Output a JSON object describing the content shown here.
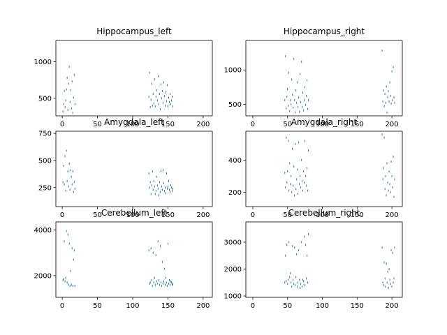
{
  "chart_data": [
    {
      "type": "scatter",
      "title": "Hippocampus_left",
      "xlim": [
        -9,
        213
      ],
      "ylim": [
        260,
        1290
      ],
      "xticks": [
        0,
        50,
        100,
        150,
        200
      ],
      "yticks": [
        500,
        1000
      ],
      "series": [
        {
          "color": "#1f77b4",
          "x": [
            1,
            2,
            3,
            4,
            5,
            6,
            7,
            8,
            9,
            10,
            11,
            12,
            13,
            14,
            15,
            16,
            17,
            18,
            123,
            124,
            125,
            126,
            127,
            128,
            129,
            130,
            131,
            132,
            133,
            134,
            135,
            136,
            137,
            138,
            139,
            140,
            141,
            142,
            143,
            144,
            145,
            146,
            147,
            148,
            149,
            150,
            151,
            152,
            153,
            154,
            155,
            156,
            157
          ],
          "y": [
            320,
            420,
            600,
            380,
            470,
            620,
            780,
            340,
            700,
            930,
            450,
            610,
            360,
            730,
            300,
            510,
            820,
            420,
            520,
            850,
            380,
            480,
            700,
            400,
            560,
            430,
            760,
            390,
            520,
            610,
            470,
            800,
            420,
            560,
            350,
            690,
            500,
            600,
            440,
            720,
            530,
            400,
            580,
            460,
            680,
            390,
            510,
            450,
            560,
            420,
            470,
            520,
            390
          ]
        }
      ]
    },
    {
      "type": "scatter",
      "title": "Hippocampus_right",
      "xlim": [
        -10,
        215
      ],
      "ylim": [
        330,
        1430
      ],
      "xticks": [
        0,
        50,
        100,
        150,
        200
      ],
      "yticks": [
        500,
        1000
      ],
      "series": [
        {
          "color": "#1f77b4",
          "x": [
            46,
            47,
            48,
            49,
            50,
            51,
            52,
            53,
            54,
            55,
            56,
            57,
            58,
            59,
            60,
            61,
            62,
            63,
            64,
            65,
            66,
            67,
            68,
            69,
            70,
            71,
            72,
            73,
            74,
            75,
            76,
            77,
            78,
            79,
            80,
            186,
            187,
            188,
            189,
            190,
            191,
            192,
            193,
            194,
            195,
            196,
            197,
            198,
            199,
            200,
            201,
            202,
            203,
            204
          ],
          "y": [
            560,
            1200,
            440,
            610,
            720,
            480,
            960,
            400,
            560,
            500,
            860,
            640,
            450,
            1160,
            560,
            380,
            700,
            520,
            820,
            460,
            600,
            390,
            940,
            530,
            1120,
            460,
            670,
            410,
            560,
            750,
            490,
            620,
            850,
            430,
            560,
            1280,
            540,
            700,
            470,
            650,
            520,
            760,
            380,
            600,
            690,
            540,
            820,
            620,
            510,
            980,
            560,
            1040,
            600,
            520
          ]
        }
      ]
    },
    {
      "type": "scatter",
      "title": "Amygdala_left",
      "xlim": [
        -9,
        213
      ],
      "ylim": [
        75,
        770
      ],
      "xticks": [
        0,
        50,
        100,
        150,
        200
      ],
      "yticks": [
        250,
        500,
        750
      ],
      "series": [
        {
          "color": "#1f77b4",
          "x": [
            1,
            2,
            3,
            4,
            5,
            6,
            7,
            8,
            9,
            10,
            11,
            12,
            13,
            14,
            15,
            16,
            17,
            18,
            123,
            124,
            125,
            126,
            127,
            128,
            129,
            130,
            131,
            132,
            133,
            134,
            135,
            136,
            137,
            138,
            139,
            140,
            141,
            142,
            143,
            144,
            145,
            146,
            147,
            148,
            149,
            150,
            151,
            152,
            153,
            154,
            155,
            156,
            157
          ],
          "y": [
            300,
            450,
            280,
            540,
            220,
            590,
            310,
            400,
            260,
            470,
            230,
            410,
            350,
            280,
            400,
            210,
            300,
            240,
            380,
            250,
            300,
            190,
            270,
            400,
            230,
            310,
            260,
            190,
            220,
            350,
            270,
            240,
            180,
            300,
            210,
            400,
            260,
            230,
            410,
            290,
            220,
            250,
            200,
            380,
            240,
            260,
            310,
            230,
            210,
            270,
            250,
            220,
            240
          ]
        }
      ]
    },
    {
      "type": "scatter",
      "title": "Amygdala_right",
      "xlim": [
        -10,
        215
      ],
      "ylim": [
        110,
        580
      ],
      "xticks": [
        0,
        50,
        100,
        150,
        200
      ],
      "yticks": [
        200,
        400
      ],
      "series": [
        {
          "color": "#1f77b4",
          "x": [
            46,
            47,
            48,
            49,
            50,
            51,
            52,
            53,
            54,
            55,
            56,
            57,
            58,
            59,
            60,
            61,
            62,
            63,
            64,
            65,
            66,
            67,
            68,
            69,
            70,
            71,
            72,
            73,
            74,
            75,
            76,
            77,
            78,
            79,
            80,
            186,
            187,
            188,
            189,
            190,
            191,
            192,
            193,
            194,
            195,
            196,
            197,
            198,
            199,
            200,
            201,
            202,
            203,
            204
          ],
          "y": [
            320,
            230,
            540,
            260,
            330,
            520,
            210,
            380,
            250,
            300,
            200,
            470,
            240,
            360,
            180,
            500,
            220,
            280,
            340,
            190,
            510,
            250,
            300,
            230,
            400,
            270,
            210,
            330,
            260,
            520,
            300,
            240,
            350,
            210,
            460,
            560,
            280,
            350,
            540,
            220,
            300,
            180,
            380,
            260,
            210,
            330,
            250,
            200,
            390,
            300,
            230,
            420,
            170,
            280
          ]
        }
      ]
    },
    {
      "type": "scatter",
      "title": "Cerebellum_left",
      "xlim": [
        -9,
        213
      ],
      "ylim": [
        1050,
        4350
      ],
      "xticks": [
        0,
        50,
        100,
        150,
        200
      ],
      "yticks": [
        2000,
        4000
      ],
      "series": [
        {
          "color": "#1f77b4",
          "x": [
            1,
            2,
            3,
            4,
            5,
            6,
            7,
            8,
            9,
            10,
            11,
            12,
            13,
            14,
            15,
            16,
            17,
            18,
            123,
            124,
            125,
            126,
            127,
            128,
            129,
            130,
            131,
            132,
            133,
            134,
            135,
            136,
            137,
            138,
            139,
            140,
            141,
            142,
            143,
            144,
            145,
            146,
            147,
            148,
            149,
            150,
            151,
            152,
            153,
            154,
            155,
            156,
            157
          ],
          "y": [
            1800,
            1850,
            3500,
            1750,
            1900,
            3950,
            1700,
            3800,
            1600,
            3400,
            1550,
            2200,
            1600,
            3200,
            1550,
            2700,
            3100,
            1550,
            3100,
            1650,
            1700,
            3200,
            1800,
            1550,
            3000,
            1700,
            1900,
            1600,
            2900,
            1750,
            1650,
            3500,
            1800,
            1600,
            3300,
            1700,
            1550,
            2600,
            1650,
            1750,
            2300,
            1600,
            1900,
            1700,
            1550,
            3400,
            1650,
            1800,
            1600,
            1750,
            1700,
            1600,
            1650
          ]
        }
      ]
    },
    {
      "type": "scatter",
      "title": "Cerebellum_right",
      "xlim": [
        -10,
        215
      ],
      "ylim": [
        950,
        3750
      ],
      "xticks": [
        0,
        50,
        100,
        150,
        200
      ],
      "yticks": [
        1000,
        2000,
        3000
      ],
      "series": [
        {
          "color": "#1f77b4",
          "x": [
            46,
            47,
            48,
            49,
            50,
            51,
            52,
            53,
            54,
            55,
            56,
            57,
            58,
            59,
            60,
            61,
            62,
            63,
            64,
            65,
            66,
            67,
            68,
            69,
            70,
            71,
            72,
            73,
            74,
            75,
            76,
            77,
            78,
            79,
            80,
            186,
            187,
            188,
            189,
            190,
            191,
            192,
            193,
            194,
            195,
            196,
            197,
            198,
            199,
            200,
            201,
            202,
            203,
            204
          ],
          "y": [
            1500,
            2500,
            1550,
            2900,
            1450,
            1600,
            3000,
            1700,
            1850,
            1500,
            1350,
            2850,
            1600,
            1450,
            2800,
            1400,
            1700,
            2550,
            1350,
            1500,
            2700,
            1600,
            1300,
            1450,
            3000,
            1350,
            1600,
            1550,
            3200,
            1400,
            2900,
            1650,
            2500,
            1500,
            3300,
            2800,
            1500,
            1400,
            2250,
            1650,
            1350,
            2200,
            1500,
            1900,
            1300,
            2000,
            1600,
            1450,
            2700,
            1350,
            2600,
            1500,
            1650,
            2800
          ]
        }
      ]
    }
  ]
}
